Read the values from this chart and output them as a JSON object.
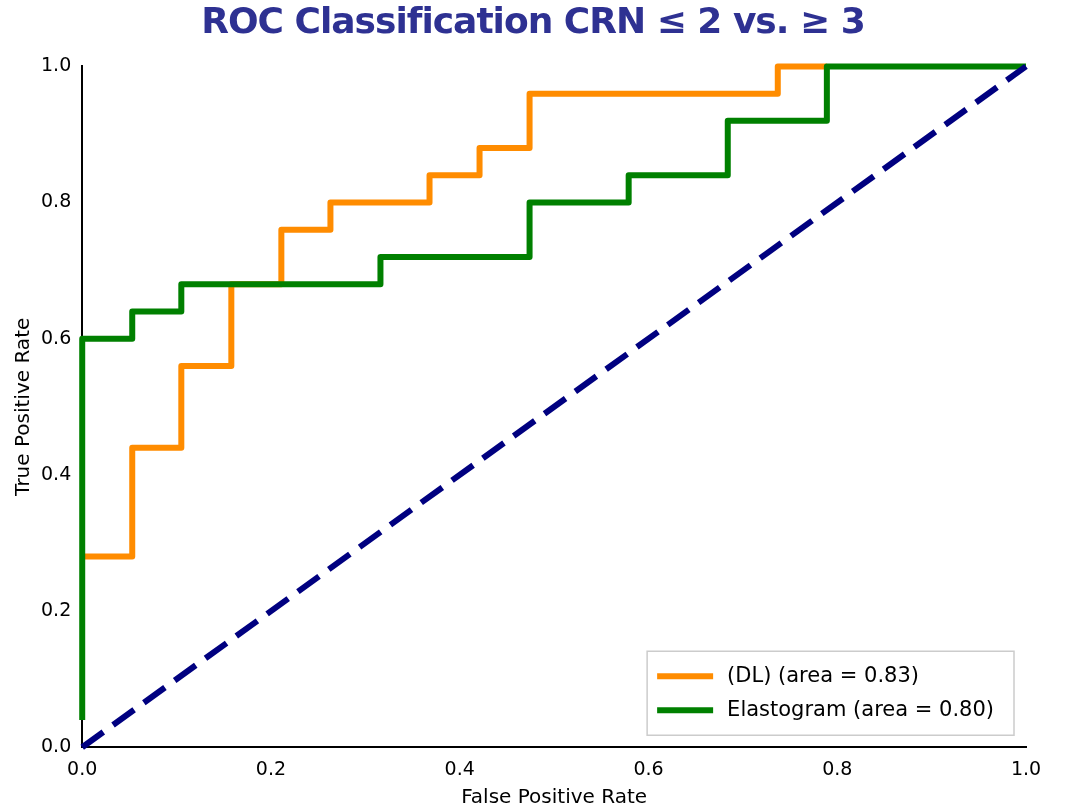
{
  "chart_data": {
    "type": "line",
    "title": "ROC Classification CRN ≤ 2 vs. ≥ 3",
    "xlabel": "False Positive Rate",
    "ylabel": "True Positive Rate",
    "xlim": [
      0,
      1
    ],
    "ylim": [
      0,
      1
    ],
    "xticks": [
      {
        "value": 0,
        "label": "0.0"
      },
      {
        "value": 0.2,
        "label": "0.2"
      },
      {
        "value": 0.4,
        "label": "0.4"
      },
      {
        "value": 0.6,
        "label": "0.6"
      },
      {
        "value": 0.8,
        "label": "0.8"
      },
      {
        "value": 1,
        "label": "1.0"
      }
    ],
    "yticks": [
      {
        "value": 0,
        "label": "0.0"
      },
      {
        "value": 0.2,
        "label": "0.2"
      },
      {
        "value": 0.4,
        "label": "0.4"
      },
      {
        "value": 0.6,
        "label": "0.6"
      },
      {
        "value": 0.8,
        "label": "0.8"
      },
      {
        "value": 1,
        "label": "1.0"
      }
    ],
    "grid": false,
    "legend": "bottom right",
    "marker": "none",
    "series": [
      {
        "name": "(DL) (area = 0.83)",
        "color": "#ff8c00",
        "line_style": "solid",
        "x": [
          0,
          0.053,
          0.053,
          0.105,
          0.105,
          0.158,
          0.158,
          0.211,
          0.211,
          0.263,
          0.263,
          0.368,
          0.368,
          0.421,
          0.421,
          0.474,
          0.474,
          0.737,
          0.737,
          0.789
        ],
        "values": [
          0.28,
          0.28,
          0.44,
          0.44,
          0.56,
          0.56,
          0.68,
          0.68,
          0.76,
          0.76,
          0.8,
          0.8,
          0.84,
          0.84,
          0.88,
          0.88,
          0.96,
          0.96,
          1,
          1
        ]
      },
      {
        "name": "Elastogram (area = 0.80)",
        "color": "#008000",
        "line_style": "solid",
        "x": [
          0,
          0,
          0.053,
          0.053,
          0.105,
          0.105,
          0.316,
          0.316,
          0.474,
          0.474,
          0.579,
          0.579,
          0.684,
          0.684,
          0.789,
          0.789,
          1
        ],
        "values": [
          0.04,
          0.6,
          0.6,
          0.64,
          0.64,
          0.68,
          0.68,
          0.72,
          0.72,
          0.8,
          0.8,
          0.84,
          0.84,
          0.92,
          0.92,
          1,
          1
        ]
      },
      {
        "color": "#000080",
        "line_style": "dashed",
        "x": [
          0,
          1
        ],
        "values": [
          0,
          1
        ]
      }
    ]
  }
}
